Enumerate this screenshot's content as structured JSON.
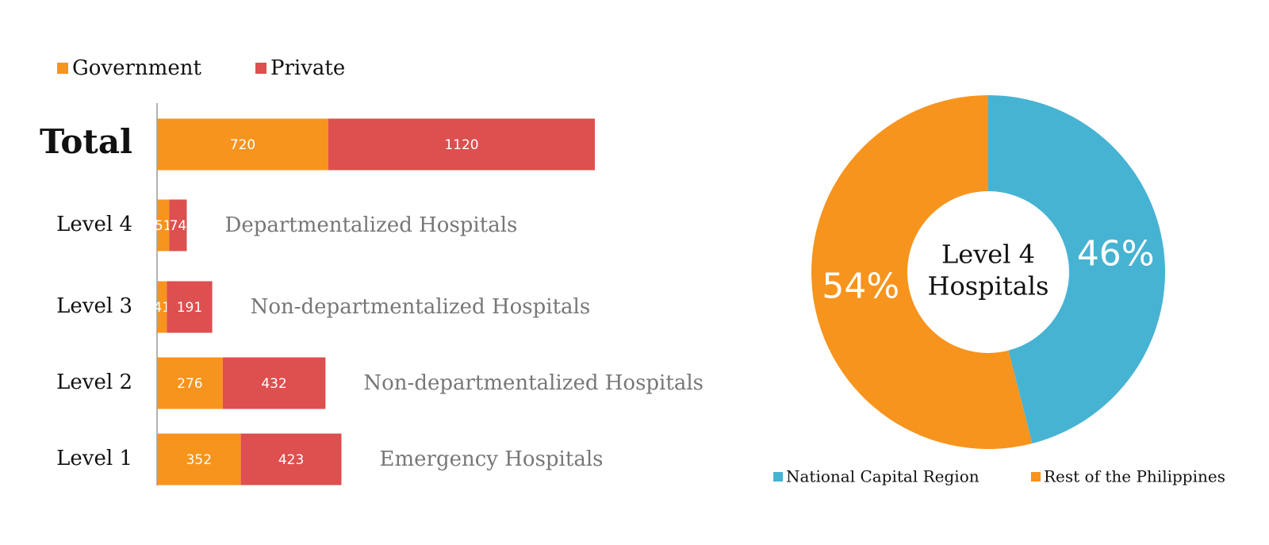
{
  "chart_data": [
    {
      "type": "bar",
      "orientation": "horizontal",
      "stacked": true,
      "categories": [
        "Total",
        "Level 4",
        "Level 3",
        "Level 2",
        "Level 1"
      ],
      "series": [
        {
          "name": "Government",
          "color": "#f7941d",
          "values": [
            720,
            51,
            41,
            276,
            352
          ]
        },
        {
          "name": "Private",
          "color": "#de4f4f",
          "values": [
            1120,
            74,
            191,
            432,
            423
          ]
        }
      ],
      "annotations": [
        null,
        "Departmentalized Hospitals",
        "Non-departmentalized Hospitals",
        "Non-departmentalized Hospitals",
        "Emergency Hospitals"
      ],
      "legend": "top-left"
    },
    {
      "type": "donut",
      "categories": [
        "National Capital Region",
        "Rest of the Philippines"
      ],
      "values": [
        46,
        54
      ],
      "value_labels": [
        "46%",
        "54%"
      ],
      "colors": [
        "#47b3d3",
        "#f7941d"
      ],
      "center_label": [
        "Level 4",
        "Hospitals"
      ],
      "legend": "bottom"
    }
  ]
}
